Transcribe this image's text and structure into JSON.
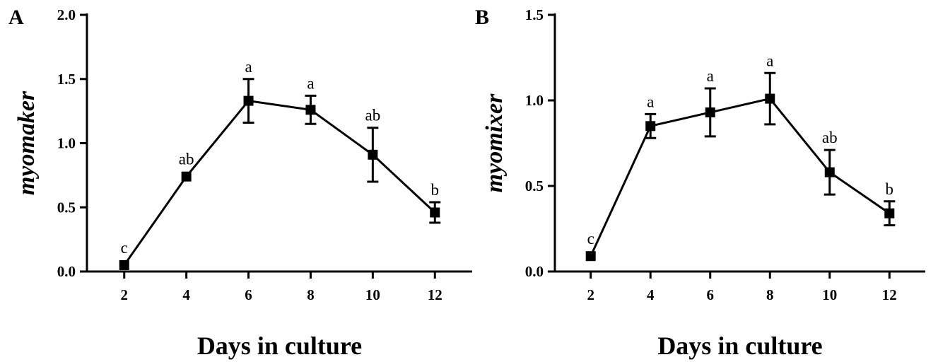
{
  "chart_data": [
    {
      "panel": "A",
      "type": "line",
      "xlabel": "Days in culture",
      "ylabel": "myomaker",
      "x": [
        2,
        4,
        6,
        8,
        10,
        12
      ],
      "x_ticks": [
        2,
        4,
        6,
        8,
        10,
        12
      ],
      "xlim": [
        0.8,
        13.2
      ],
      "ylim": [
        0,
        2.0
      ],
      "y_ticks": [
        "0.0",
        "0.5",
        "1.0",
        "1.5",
        "2.0"
      ],
      "series": [
        {
          "values": [
            0.05,
            0.74,
            1.33,
            1.26,
            0.91,
            0.46
          ],
          "error": [
            0.0,
            0.0,
            0.17,
            0.11,
            0.21,
            0.08
          ],
          "labels": [
            "c",
            "ab",
            "a",
            "a",
            "ab",
            "b"
          ]
        }
      ],
      "grid": false
    },
    {
      "panel": "B",
      "type": "line",
      "xlabel": "Days in culture",
      "ylabel": "myomixer",
      "x": [
        2,
        4,
        6,
        8,
        10,
        12
      ],
      "x_ticks": [
        2,
        4,
        6,
        8,
        10,
        12
      ],
      "xlim": [
        0.8,
        13.2
      ],
      "ylim": [
        0,
        1.5
      ],
      "y_ticks": [
        "0.0",
        "0.5",
        "1.0",
        "1.5"
      ],
      "series": [
        {
          "values": [
            0.09,
            0.85,
            0.93,
            1.01,
            0.58,
            0.34
          ],
          "error": [
            0.0,
            0.07,
            0.14,
            0.15,
            0.13,
            0.07
          ],
          "labels": [
            "c",
            "a",
            "a",
            "a",
            "ab",
            "b"
          ]
        }
      ],
      "grid": false
    }
  ]
}
